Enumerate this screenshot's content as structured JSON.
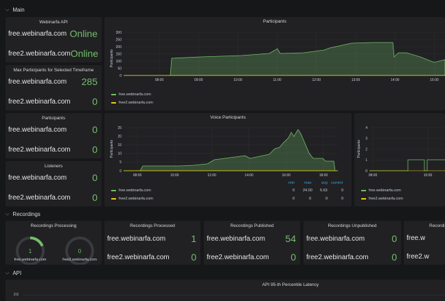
{
  "rows": {
    "main": "Main",
    "recordings": "Recordings",
    "api": "API"
  },
  "colors": {
    "green": "#73bf69",
    "yellow": "#f2cc0c",
    "bg": "#212124",
    "blue": "#33a2e5"
  },
  "webinarfa_api": {
    "title": "Webinarfa API",
    "rows": [
      {
        "host": "free.webinarfa.com",
        "value": "Online"
      },
      {
        "host": "free2.webinarfa.com",
        "value": "Online"
      }
    ]
  },
  "max_participants": {
    "title": "Max Participants for Selected Timeframe",
    "rows": [
      {
        "host": "free.webinarfa.com",
        "value": "285"
      },
      {
        "host": "free2.webinarfa.com",
        "value": "0"
      }
    ]
  },
  "participants_stat": {
    "title": "Participants",
    "rows": [
      {
        "host": "free.webinarfa.com",
        "value": "0"
      },
      {
        "host": "free2.webinarfa.com",
        "value": "0"
      }
    ]
  },
  "listeners": {
    "title": "Listeners",
    "rows": [
      {
        "host": "free.webinarfa.com",
        "value": "0"
      },
      {
        "host": "free2.webinarfa.com",
        "value": "0"
      }
    ]
  },
  "participants_chart": {
    "title": "Participants",
    "ylabel": "Participants",
    "yticks": [
      "300",
      "250",
      "200",
      "150",
      "100",
      "50",
      "0"
    ],
    "xticks": [
      "08:00",
      "09:00",
      "10:00",
      "11:00",
      "12:00",
      "13:00",
      "14:00",
      "15:00"
    ],
    "legend": [
      "free.webinarfa.com",
      "free2.webinarfa.com"
    ]
  },
  "voice_chart": {
    "title": "Voice Participants",
    "ylabel": "Participants",
    "yticks": [
      "25",
      "20",
      "15",
      "10",
      "5",
      "0"
    ],
    "xticks": [
      "08:00",
      "10:00",
      "12:00",
      "14:00",
      "16:00",
      "18:00"
    ],
    "legend": [
      "free.webinarfa.com",
      "free2.webinarfa.com"
    ],
    "stat_headers": [
      "min",
      "max",
      "avg",
      "current"
    ],
    "stats": [
      [
        "0",
        "24.00",
        "5.63",
        "0"
      ],
      [
        "0",
        "0",
        "0",
        "0"
      ]
    ]
  },
  "third_chart": {
    "ylabel": "Participants",
    "yticks": [
      "4",
      "3",
      "2",
      "1",
      "0"
    ],
    "xticks": [
      "08:00",
      "10:00"
    ],
    "legend": [
      "free.webinarfa.com",
      "free2.webinarfa.com"
    ]
  },
  "recordings_processing": {
    "title": "Recordings Processing",
    "gauges": [
      {
        "host": "free.webinarfa.com",
        "value": "1",
        "fraction": 0.25
      },
      {
        "host": "free2.webinarfa.com",
        "value": "0",
        "fraction": 0
      }
    ]
  },
  "recordings_processed": {
    "title": "Recordings Processed",
    "rows": [
      {
        "host": "free.webinarfa.com",
        "value": "1"
      },
      {
        "host": "free2.webinarfa.com",
        "value": "0"
      }
    ]
  },
  "recordings_published": {
    "title": "Recordings Published",
    "rows": [
      {
        "host": "free.webinarfa.com",
        "value": "54"
      },
      {
        "host": "free2.webinarfa.com",
        "value": "0"
      }
    ]
  },
  "recordings_unpublished": {
    "title": "Recordings Unpublished",
    "rows": [
      {
        "host": "free.webinarfa.com",
        "value": "0"
      },
      {
        "host": "free2.webinarfa.com",
        "value": "0"
      }
    ]
  },
  "recordings_partial": {
    "title": "Recordi",
    "rows": [
      {
        "host": "free.w"
      },
      {
        "host": "free2.w"
      }
    ]
  },
  "api_latency": {
    "title": "API 95-th Percentile Latency",
    "ytick": "2.5"
  }
}
